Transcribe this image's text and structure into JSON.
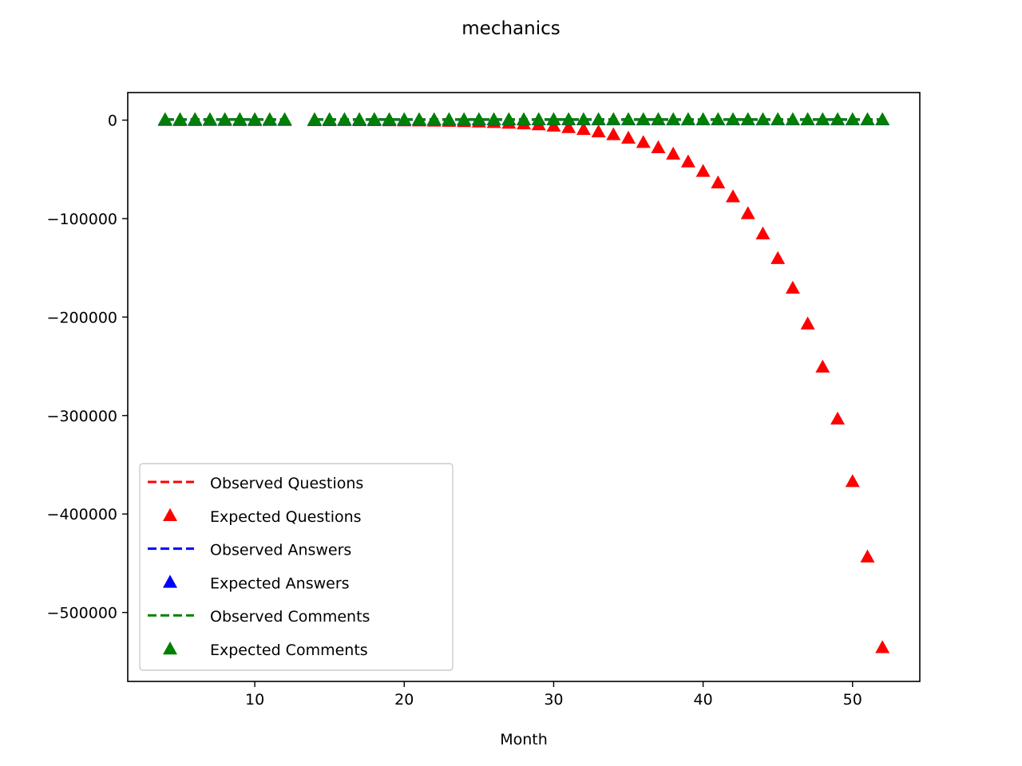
{
  "chart_data": {
    "type": "scatter",
    "title": "mechanics",
    "xlabel": "Month",
    "ylabel": "",
    "xlim": [
      1.5,
      54.5
    ],
    "ylim": [
      -570000,
      28000
    ],
    "xticks": [
      10,
      20,
      30,
      40,
      50
    ],
    "yticks": [
      0,
      -100000,
      -200000,
      -300000,
      -400000,
      -500000
    ],
    "xtick_labels": [
      "10",
      "20",
      "30",
      "40",
      "50"
    ],
    "ytick_labels": [
      "0",
      "−100000",
      "−200000",
      "−300000",
      "−400000",
      "−500000"
    ],
    "grid": false,
    "legend_position": "lower-left",
    "series": [
      {
        "name": "Observed Questions",
        "kind": "dashed-line",
        "color": "#ff0000",
        "x": [
          4,
          5,
          6,
          7,
          8,
          9,
          10,
          11,
          12,
          14,
          15,
          16,
          17,
          18,
          19,
          20,
          21,
          22,
          23,
          24,
          25,
          26,
          27,
          28,
          29,
          30,
          31,
          32,
          33,
          34,
          35,
          36,
          37,
          38,
          39,
          40,
          41,
          42,
          43,
          44,
          45,
          46,
          47,
          48,
          49,
          50,
          51,
          52
        ],
        "y": [
          500,
          450,
          520,
          480,
          500,
          510,
          470,
          490,
          500,
          460,
          480,
          500,
          490,
          510,
          480,
          470,
          490,
          500,
          480,
          470,
          490,
          500,
          480,
          470,
          490,
          500,
          480,
          470,
          490,
          500,
          480,
          470,
          490,
          500,
          480,
          470,
          490,
          500,
          480,
          470,
          490,
          500,
          480,
          470,
          490,
          500,
          480,
          470
        ]
      },
      {
        "name": "Expected Questions",
        "kind": "triangle-markers",
        "color": "#ff0000",
        "x": [
          4,
          5,
          6,
          7,
          8,
          9,
          10,
          11,
          12,
          14,
          15,
          16,
          17,
          18,
          19,
          20,
          21,
          22,
          23,
          24,
          25,
          26,
          27,
          28,
          29,
          30,
          31,
          32,
          33,
          34,
          35,
          36,
          37,
          38,
          39,
          40,
          41,
          42,
          43,
          44,
          45,
          46,
          47,
          48,
          49,
          50,
          51,
          52
        ],
        "y": [
          0,
          -100,
          -50,
          -20,
          -10,
          -60,
          -80,
          -30,
          -40,
          -200,
          -150,
          -100,
          -150,
          -200,
          -300,
          -400,
          -500,
          -700,
          -900,
          -1200,
          -1600,
          -2100,
          -2800,
          -3500,
          -4500,
          -5800,
          -7300,
          -9200,
          -11600,
          -14500,
          -18000,
          -22400,
          -27700,
          -34200,
          -42100,
          -51800,
          -63500,
          -77600,
          -94700,
          -115300,
          -140300,
          -170400,
          -206700,
          -250500,
          -303300,
          -366800,
          -443300,
          -535400
        ]
      },
      {
        "name": "Observed Answers",
        "kind": "dashed-line",
        "color": "#0000ff",
        "x": [
          4,
          5,
          6,
          7,
          8,
          9,
          10,
          11,
          12,
          14,
          15,
          16,
          17,
          18,
          19,
          20,
          21,
          22,
          23,
          24,
          25,
          26,
          27,
          28,
          29,
          30,
          31,
          32,
          33,
          34,
          35,
          36,
          37,
          38,
          39,
          40,
          41,
          42,
          43,
          44,
          45,
          46,
          47,
          48,
          49,
          50,
          51,
          52
        ],
        "y": [
          600,
          550,
          620,
          580,
          600,
          610,
          570,
          590,
          600,
          560,
          580,
          600,
          590,
          610,
          580,
          570,
          590,
          600,
          580,
          570,
          590,
          600,
          580,
          570,
          590,
          600,
          580,
          570,
          590,
          600,
          580,
          570,
          590,
          600,
          580,
          570,
          590,
          600,
          580,
          570,
          590,
          600,
          580,
          570,
          590,
          600,
          580,
          570
        ]
      },
      {
        "name": "Expected Answers",
        "kind": "triangle-markers",
        "color": "#0000ff",
        "x": [
          4,
          5,
          6,
          7,
          8,
          9,
          10,
          11,
          12,
          14,
          15,
          16,
          17,
          18,
          19,
          20,
          21,
          22,
          23,
          24,
          25,
          26,
          27,
          28,
          29,
          30,
          31,
          32,
          33,
          34,
          35,
          36,
          37,
          38,
          39,
          40,
          41,
          42,
          43,
          44,
          45,
          46,
          47,
          48,
          49,
          50,
          51,
          52
        ],
        "y": [
          600,
          550,
          620,
          580,
          600,
          610,
          570,
          590,
          600,
          560,
          580,
          600,
          590,
          610,
          580,
          570,
          590,
          600,
          580,
          570,
          590,
          600,
          580,
          570,
          590,
          600,
          580,
          570,
          590,
          600,
          580,
          570,
          590,
          600,
          580,
          570,
          590,
          600,
          580,
          570,
          590,
          600,
          580,
          570,
          590,
          600,
          580,
          570
        ]
      },
      {
        "name": "Observed Comments",
        "kind": "dashed-line",
        "color": "#008000",
        "x": [
          4,
          5,
          6,
          7,
          8,
          9,
          10,
          11,
          12,
          14,
          15,
          16,
          17,
          18,
          19,
          20,
          21,
          22,
          23,
          24,
          25,
          26,
          27,
          28,
          29,
          30,
          31,
          32,
          33,
          34,
          35,
          36,
          37,
          38,
          39,
          40,
          41,
          42,
          43,
          44,
          45,
          46,
          47,
          48,
          49,
          50,
          51,
          52
        ],
        "y": [
          800,
          750,
          820,
          780,
          800,
          810,
          770,
          790,
          800,
          760,
          780,
          800,
          790,
          810,
          780,
          770,
          790,
          800,
          780,
          770,
          790,
          800,
          780,
          770,
          790,
          800,
          780,
          770,
          790,
          800,
          780,
          770,
          790,
          800,
          780,
          770,
          790,
          800,
          780,
          770,
          790,
          800,
          780,
          770,
          790,
          800,
          780,
          770
        ]
      },
      {
        "name": "Expected Comments",
        "kind": "triangle-markers",
        "color": "#008000",
        "x": [
          4,
          5,
          6,
          7,
          8,
          9,
          10,
          11,
          12,
          14,
          15,
          16,
          17,
          18,
          19,
          20,
          21,
          22,
          23,
          24,
          25,
          26,
          27,
          28,
          29,
          30,
          31,
          32,
          33,
          34,
          35,
          36,
          37,
          38,
          39,
          40,
          41,
          42,
          43,
          44,
          45,
          46,
          47,
          48,
          49,
          50,
          51,
          52
        ],
        "y": [
          800,
          750,
          820,
          780,
          800,
          810,
          770,
          790,
          800,
          760,
          780,
          800,
          790,
          810,
          780,
          770,
          790,
          800,
          780,
          770,
          790,
          800,
          780,
          770,
          790,
          800,
          780,
          770,
          790,
          800,
          780,
          770,
          790,
          800,
          780,
          770,
          790,
          800,
          780,
          770,
          790,
          800,
          780,
          770,
          790,
          800,
          780,
          770
        ]
      }
    ]
  }
}
